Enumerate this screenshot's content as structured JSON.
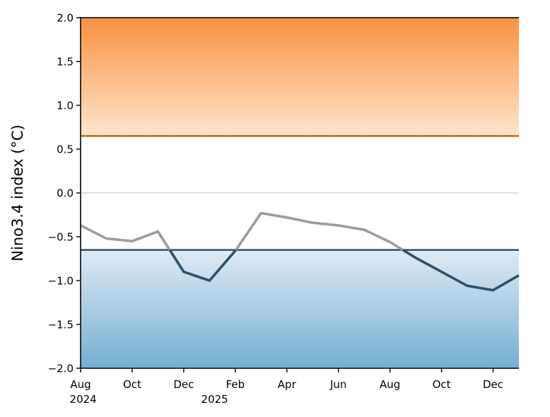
{
  "chart_data": {
    "type": "line",
    "title": "",
    "xlabel": "",
    "ylabel": "Nino3.4 index (°C)",
    "ylim": [
      -2.0,
      2.0
    ],
    "grid": "horizontal zero line only",
    "legend": "none",
    "x": [
      "Aug 2024",
      "Sep 2024",
      "Oct 2024",
      "Nov 2024",
      "Dec 2024",
      "Jan 2025",
      "Feb 2025",
      "Mar 2025",
      "Apr 2025",
      "May 2025",
      "Jun 2025",
      "Jul 2025",
      "Aug 2025",
      "Sep 2025",
      "Oct 2025",
      "Nov 2025",
      "Dec 2025",
      "Jan 2026"
    ],
    "values": [
      -0.37,
      -0.52,
      -0.55,
      -0.44,
      -0.9,
      -1.0,
      -0.66,
      -0.23,
      -0.28,
      -0.34,
      -0.37,
      -0.42,
      -0.56,
      -0.74,
      -0.9,
      -1.06,
      -1.11,
      -0.94
    ],
    "thresholds": {
      "el_nino": 0.65,
      "la_nina": -0.65
    },
    "y_ticks": [
      {
        "value": 2.0,
        "label": "2.0"
      },
      {
        "value": 1.5,
        "label": "1.5"
      },
      {
        "value": 1.0,
        "label": "1.0"
      },
      {
        "value": 0.5,
        "label": "0.5"
      },
      {
        "value": 0.0,
        "label": "0.0"
      },
      {
        "value": -0.5,
        "label": "−0.5"
      },
      {
        "value": -1.0,
        "label": "−1.0"
      },
      {
        "value": -1.5,
        "label": "−1.5"
      },
      {
        "value": -2.0,
        "label": "−2.0"
      }
    ],
    "x_ticks": [
      {
        "label": "Aug",
        "month_index": 0
      },
      {
        "label": "Oct",
        "month_index": 2
      },
      {
        "label": "Dec",
        "month_index": 4
      },
      {
        "label": "Feb",
        "month_index": 6
      },
      {
        "label": "Apr",
        "month_index": 8
      },
      {
        "label": "Jun",
        "month_index": 10
      },
      {
        "label": "Aug",
        "month_index": 12
      },
      {
        "label": "Oct",
        "month_index": 14
      },
      {
        "label": "Dec",
        "month_index": 16
      }
    ],
    "year_labels": [
      {
        "label": "2024",
        "month_index": 0.1
      },
      {
        "label": "2025",
        "month_index": 5.2
      }
    ],
    "colors": {
      "el_nino_region_top": "#fa9140",
      "el_nino_region_fade": "#fde6cd",
      "el_nino_line": "#d2600a",
      "la_nina_region_fade": "#dfeaf4",
      "la_nina_region_bottom": "#74aed4",
      "la_nina_line": "#2b5169",
      "series_above_threshold": "#9c9c9c",
      "series_below_threshold": "#2b5169",
      "zero_line": "#c6c6c6",
      "spine": "#1c1c1c"
    }
  }
}
